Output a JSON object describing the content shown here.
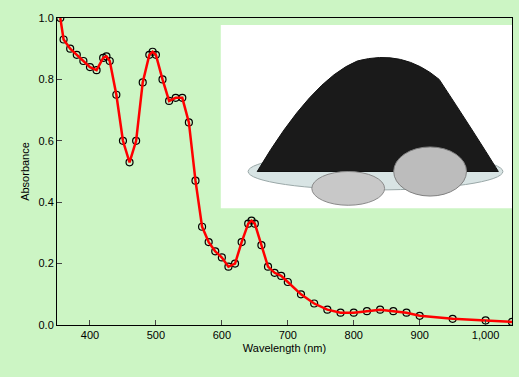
{
  "chart_data": {
    "type": "line",
    "x_label": "Wavelength (nm)",
    "y_label": "Absorbance",
    "x": [
      355,
      360,
      370,
      380,
      390,
      400,
      410,
      420,
      425,
      430,
      440,
      450,
      460,
      470,
      480,
      490,
      495,
      500,
      510,
      520,
      530,
      540,
      550,
      560,
      570,
      580,
      590,
      600,
      610,
      620,
      630,
      640,
      645,
      650,
      660,
      670,
      680,
      690,
      700,
      720,
      740,
      760,
      780,
      800,
      820,
      840,
      860,
      880,
      900,
      950,
      1000,
      1040
    ],
    "series": [
      {
        "type": "scatter",
        "marker": "circle-open",
        "color": "#000000",
        "values": [
          1.0,
          0.93,
          0.9,
          0.88,
          0.86,
          0.84,
          0.83,
          0.87,
          0.875,
          0.86,
          0.75,
          0.6,
          0.53,
          0.6,
          0.79,
          0.88,
          0.89,
          0.88,
          0.8,
          0.73,
          0.74,
          0.74,
          0.66,
          0.47,
          0.32,
          0.27,
          0.24,
          0.22,
          0.19,
          0.2,
          0.27,
          0.33,
          0.34,
          0.33,
          0.26,
          0.19,
          0.17,
          0.16,
          0.14,
          0.1,
          0.07,
          0.05,
          0.04,
          0.04,
          0.045,
          0.05,
          0.045,
          0.04,
          0.03,
          0.02,
          0.015,
          0.01
        ]
      },
      {
        "type": "line",
        "line_style": "solid",
        "color": "#ff0000",
        "values": [
          1.0,
          0.93,
          0.9,
          0.88,
          0.86,
          0.84,
          0.83,
          0.87,
          0.875,
          0.86,
          0.75,
          0.6,
          0.53,
          0.6,
          0.79,
          0.88,
          0.89,
          0.88,
          0.8,
          0.73,
          0.74,
          0.74,
          0.66,
          0.47,
          0.32,
          0.27,
          0.24,
          0.22,
          0.19,
          0.2,
          0.27,
          0.33,
          0.34,
          0.33,
          0.26,
          0.19,
          0.17,
          0.16,
          0.14,
          0.1,
          0.07,
          0.05,
          0.04,
          0.04,
          0.045,
          0.05,
          0.045,
          0.04,
          0.03,
          0.02,
          0.015,
          0.01
        ]
      }
    ],
    "xlim": [
      350,
      1040
    ],
    "xticks": [
      400,
      500,
      600,
      700,
      800,
      900,
      {
        "value": 1000,
        "label": "1,000"
      }
    ],
    "ylim": [
      0,
      1
    ],
    "yticks": [
      {
        "value": 0,
        "label": "0.0"
      },
      {
        "value": 0.2,
        "label": "0.2"
      },
      {
        "value": 0.4,
        "label": "0.4"
      },
      {
        "value": 0.6,
        "label": "0.6"
      },
      {
        "value": 0.8,
        "label": "0.8"
      },
      {
        "value": 1,
        "label": "1.0"
      }
    ],
    "grid": false
  }
}
